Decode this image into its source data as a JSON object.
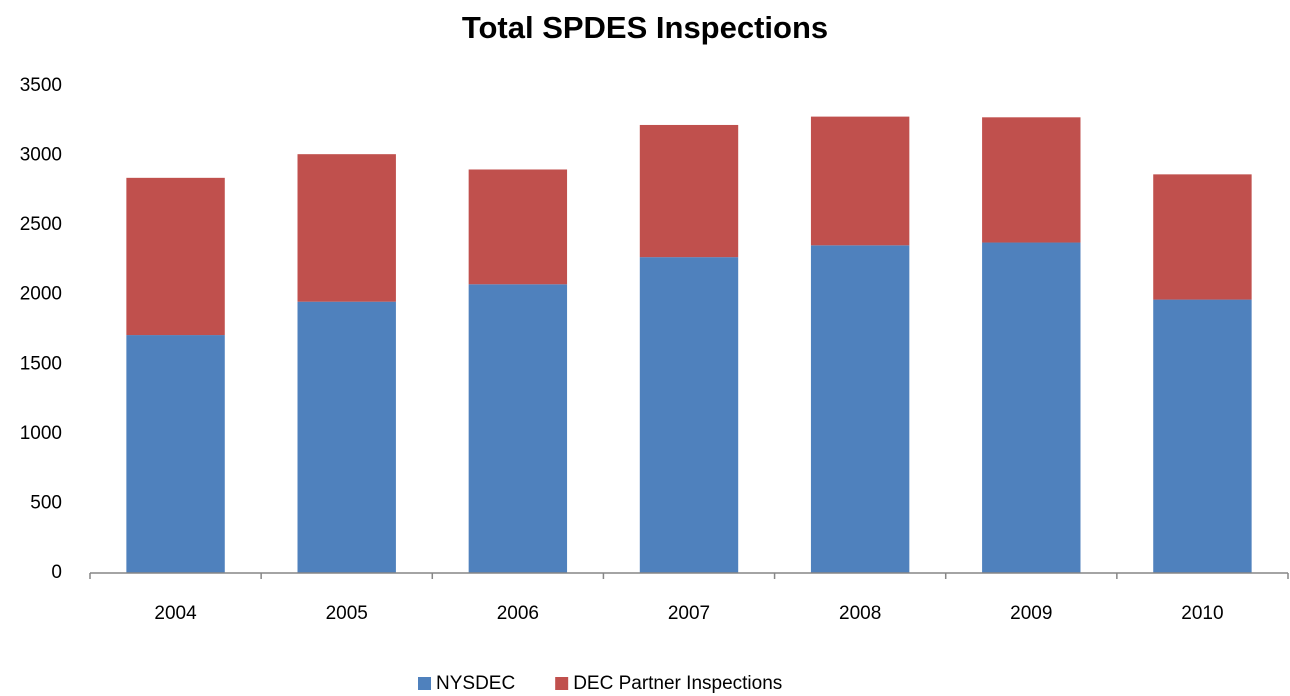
{
  "chart_data": {
    "type": "stacked_bar",
    "title": "Total SPDES Inspections",
    "categories": [
      "2004",
      "2005",
      "2006",
      "2007",
      "2008",
      "2009",
      "2010"
    ],
    "series": [
      {
        "name": "NYSDEC",
        "color": "#4f81bd",
        "values": [
          1710,
          1950,
          2075,
          2270,
          2355,
          2375,
          1965
        ]
      },
      {
        "name": "DEC Partner Inspections",
        "color": "#c0504d",
        "values": [
          1130,
          1060,
          825,
          950,
          925,
          900,
          900
        ]
      }
    ],
    "ylim": [
      0,
      3500
    ],
    "yticks": [
      0,
      500,
      1000,
      1500,
      2000,
      2500,
      3000,
      3500
    ],
    "grid": false,
    "legend": "bottom"
  }
}
